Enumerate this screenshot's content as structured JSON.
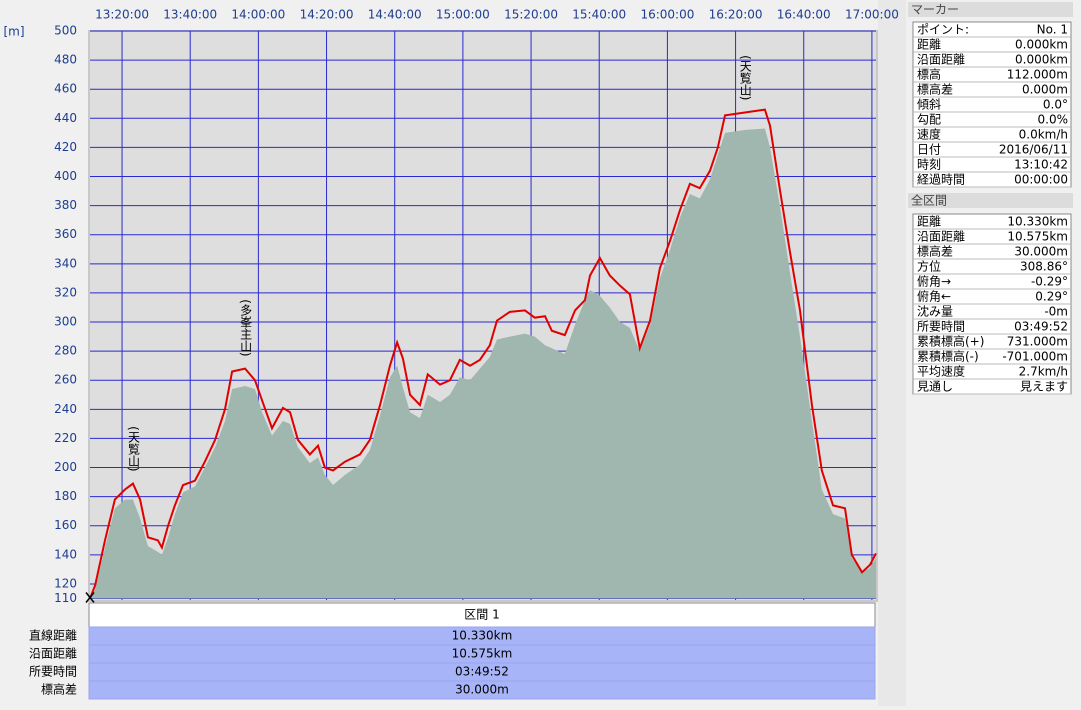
{
  "chart_data": {
    "type": "line",
    "y_label": "[m]",
    "xlim": [
      790.6,
      1021.2
    ],
    "ylim": [
      110,
      500
    ],
    "xticks": [
      {
        "value": 800,
        "label": "13:20:00"
      },
      {
        "value": 820,
        "label": "13:40:00"
      },
      {
        "value": 840,
        "label": "14:00:00"
      },
      {
        "value": 860,
        "label": "14:20:00"
      },
      {
        "value": 880,
        "label": "14:40:00"
      },
      {
        "value": 900,
        "label": "15:00:00"
      },
      {
        "value": 920,
        "label": "15:20:00"
      },
      {
        "value": 940,
        "label": "15:40:00"
      },
      {
        "value": 960,
        "label": "16:00:00"
      },
      {
        "value": 980,
        "label": "16:20:00"
      },
      {
        "value": 1000,
        "label": "16:40:00"
      },
      {
        "value": 1020,
        "label": "17:00:00"
      }
    ],
    "yticks": [
      110,
      120,
      140,
      160,
      180,
      200,
      220,
      240,
      260,
      280,
      300,
      320,
      340,
      360,
      380,
      400,
      420,
      440,
      460,
      480,
      500
    ],
    "grid": true,
    "x": [
      790.6,
      792.1,
      795.0,
      797.9,
      800.9,
      803.2,
      805.3,
      807.6,
      810.5,
      811.7,
      813.5,
      815.5,
      817.9,
      821.4,
      824.3,
      827.3,
      830.2,
      832.3,
      836.1,
      839.0,
      841.1,
      844.0,
      847.2,
      849.3,
      851.6,
      855.1,
      857.5,
      859.5,
      861.9,
      865.4,
      869.8,
      872.7,
      875.7,
      878.6,
      880.7,
      882.4,
      884.5,
      887.4,
      889.7,
      893.3,
      896.2,
      899.1,
      902.1,
      905.0,
      907.9,
      910.0,
      913.8,
      918.2,
      921.1,
      924.1,
      926.1,
      929.9,
      932.9,
      935.8,
      937.3,
      940.2,
      943.1,
      946.1,
      949.0,
      951.9,
      954.9,
      957.8,
      960.8,
      963.7,
      966.6,
      969.5,
      972.5,
      974.8,
      976.9,
      982.7,
      988.6,
      990.1,
      993.0,
      995.9,
      998.9,
      1002.4,
      1005.3,
      1008.6,
      1012.1,
      1014.1,
      1017.1,
      1019.4,
      1021.2
    ],
    "series": [
      {
        "type": "area",
        "color": "#9fb7ae",
        "values": [
          110,
          116,
          145,
          172,
          178,
          178,
          165,
          146,
          142,
          140,
          152,
          168,
          183,
          187,
          200,
          214,
          232,
          254,
          256,
          254,
          238,
          222,
          232,
          230,
          214,
          203,
          207,
          195,
          188,
          195,
          202,
          212,
          236,
          262,
          270,
          255,
          238,
          234,
          250,
          245,
          250,
          262,
          260,
          268,
          276,
          288,
          290,
          292,
          290,
          284,
          282,
          278,
          298,
          315,
          322,
          318,
          310,
          300,
          296,
          280,
          298,
          330,
          350,
          372,
          388,
          385,
          398,
          415,
          430,
          432,
          433,
          420,
          380,
          335,
          290,
          232,
          185,
          168,
          165,
          138,
          128,
          131,
          138
        ]
      },
      {
        "type": "line",
        "color": "#e00000",
        "values": [
          110,
          119,
          150,
          178,
          185,
          189,
          178,
          152,
          150,
          145,
          160,
          174,
          188,
          191,
          204,
          219,
          240,
          266,
          268,
          260,
          246,
          227,
          241,
          238,
          219,
          209,
          215,
          200,
          198,
          204,
          209,
          219,
          243,
          270,
          286,
          275,
          250,
          243,
          264,
          257,
          260,
          274,
          270,
          274,
          284,
          301,
          307,
          308,
          303,
          304,
          294,
          291,
          308,
          315,
          332,
          344,
          332,
          325,
          319,
          282,
          301,
          337,
          356,
          377,
          395,
          392,
          404,
          420,
          442,
          444,
          446,
          435,
          391,
          349,
          308,
          243,
          198,
          174,
          172,
          140,
          128,
          133,
          141
        ]
      }
    ],
    "annotations": [
      {
        "text": "(天覧山)",
        "x": 803.2,
        "y": 189
      },
      {
        "text": "(多峯主山)",
        "x": 836.1,
        "y": 268
      },
      {
        "text": "(天覧山)",
        "x": 982.7,
        "y": 444
      }
    ]
  },
  "section": {
    "header": "区間 1",
    "rows": [
      [
        "直線距離",
        "10.330km"
      ],
      [
        "沿面距離",
        "10.575km"
      ],
      [
        "所要時間",
        "03:49:52"
      ],
      [
        "標高差",
        "30.000m"
      ]
    ]
  },
  "marker": {
    "title": "マーカー",
    "rows": [
      [
        "ポイント:",
        "No. 1"
      ],
      [
        "距離",
        "0.000km"
      ],
      [
        "沿面距離",
        "0.000km"
      ],
      [
        "標高",
        "112.000m"
      ],
      [
        "標高差",
        "0.000m"
      ],
      [
        "傾斜",
        "0.0°"
      ],
      [
        "勾配",
        "0.0%"
      ],
      [
        "速度",
        "0.0km/h"
      ],
      [
        "日付",
        "2016/06/11"
      ],
      [
        "時刻",
        "13:10:42"
      ],
      [
        "経過時間",
        "00:00:00"
      ]
    ]
  },
  "total": {
    "title": "全区間",
    "rows": [
      [
        "距離",
        "10.330km"
      ],
      [
        "沿面距離",
        "10.575km"
      ],
      [
        "標高差",
        "30.000m"
      ],
      [
        "方位",
        "308.86°"
      ],
      [
        "俯角→",
        "-0.29°"
      ],
      [
        "俯角←",
        "0.29°"
      ],
      [
        "沈み量",
        "-0m"
      ],
      [
        "所要時間",
        "03:49:52"
      ],
      [
        "累積標高(+)",
        "731.000m"
      ],
      [
        "累積標高(-)",
        "-701.000m"
      ],
      [
        "平均速度",
        "2.7km/h"
      ],
      [
        "見通し",
        "見えます"
      ]
    ]
  }
}
